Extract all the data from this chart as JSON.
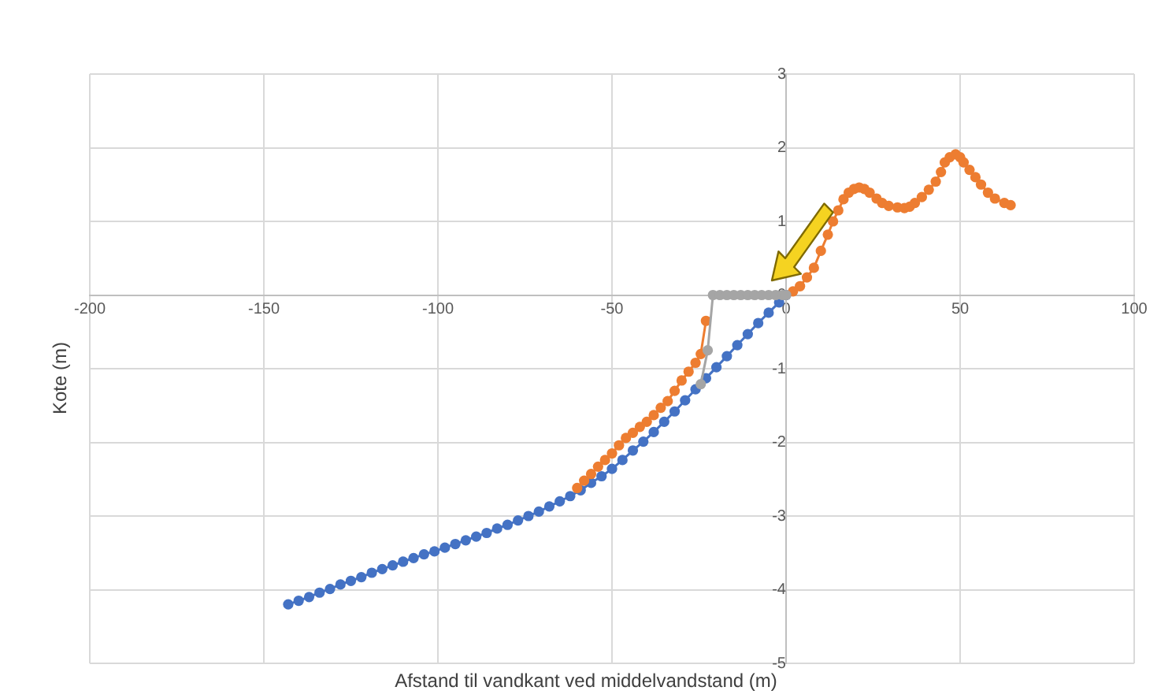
{
  "chart_data": {
    "type": "line",
    "xlabel": "Afstand til vandkant ved middelvandstand (m)",
    "ylabel": "Kote (m)",
    "xlim": [
      -200,
      100
    ],
    "ylim": [
      -5,
      3
    ],
    "xticks": [
      -200,
      -150,
      -100,
      -50,
      0,
      50,
      100
    ],
    "yticks": [
      -5,
      -4,
      -3,
      -2,
      -1,
      0,
      1,
      2,
      3
    ],
    "grid": true,
    "marker": "circle",
    "line_style": "solid",
    "series": [
      {
        "color": "#4472c4",
        "x": [
          -143,
          -140,
          -137,
          -134,
          -131,
          -128,
          -125,
          -122,
          -119,
          -116,
          -113,
          -110,
          -107,
          -104,
          -101,
          -98,
          -95,
          -92,
          -89,
          -86,
          -83,
          -80,
          -77,
          -74,
          -71,
          -68,
          -65,
          -62,
          -59,
          -56,
          -53,
          -50,
          -47,
          -44,
          -41,
          -38,
          -35,
          -32,
          -29,
          -26,
          -23,
          -20,
          -17,
          -14,
          -11,
          -8,
          -5,
          -2,
          0
        ],
        "values": [
          -4.2,
          -4.15,
          -4.1,
          -4.04,
          -3.99,
          -3.93,
          -3.88,
          -3.83,
          -3.77,
          -3.72,
          -3.67,
          -3.62,
          -3.57,
          -3.52,
          -3.48,
          -3.43,
          -3.38,
          -3.33,
          -3.28,
          -3.23,
          -3.17,
          -3.12,
          -3.06,
          -3.0,
          -2.94,
          -2.87,
          -2.8,
          -2.73,
          -2.65,
          -2.55,
          -2.46,
          -2.36,
          -2.24,
          -2.11,
          -1.99,
          -1.86,
          -1.72,
          -1.58,
          -1.43,
          -1.28,
          -1.13,
          -0.98,
          -0.83,
          -0.68,
          -0.53,
          -0.38,
          -0.24,
          -0.1,
          0
        ]
      },
      {
        "color": "#ed7d31",
        "x": [
          -60,
          -58,
          -56,
          -54,
          -52,
          -50,
          -48,
          -46,
          -44,
          -42,
          -40,
          -38,
          -36,
          -34,
          -32,
          -30,
          -28,
          -26,
          -24.5,
          -23,
          -10,
          2,
          4,
          6,
          8,
          10,
          12,
          13.5,
          15,
          16.5,
          18,
          19.5,
          21,
          22.5,
          24,
          26,
          27.6,
          29.5,
          32,
          34,
          35.5,
          37,
          39,
          41,
          43,
          44.5,
          45.6,
          47,
          48.7,
          50,
          51,
          52.7,
          54.4,
          56,
          58,
          60,
          62.7,
          64.5
        ],
        "values": [
          -2.62,
          -2.52,
          -2.43,
          -2.33,
          -2.24,
          -2.15,
          -2.04,
          -1.94,
          -1.87,
          -1.79,
          -1.72,
          -1.63,
          -1.53,
          -1.44,
          -1.3,
          -1.16,
          -1.04,
          -0.92,
          -0.8,
          -0.35,
          null,
          0.05,
          0.12,
          0.24,
          0.37,
          0.6,
          0.82,
          1.0,
          1.15,
          1.3,
          1.39,
          1.44,
          1.46,
          1.44,
          1.39,
          1.31,
          1.25,
          1.21,
          1.19,
          1.18,
          1.2,
          1.25,
          1.33,
          1.43,
          1.54,
          1.67,
          1.8,
          1.87,
          1.91,
          1.87,
          1.8,
          1.7,
          1.6,
          1.5,
          1.39,
          1.31,
          1.25,
          1.22
        ]
      },
      {
        "color": "#a5a5a5",
        "x": [
          -24.5,
          -22.5,
          -21,
          -19,
          -17,
          -15,
          -13,
          -11,
          -9,
          -7,
          -5,
          -3,
          -1,
          0
        ],
        "values": [
          -1.21,
          -0.75,
          0,
          0,
          0,
          0,
          0,
          0,
          0,
          0,
          0,
          0,
          0,
          0
        ]
      }
    ]
  }
}
